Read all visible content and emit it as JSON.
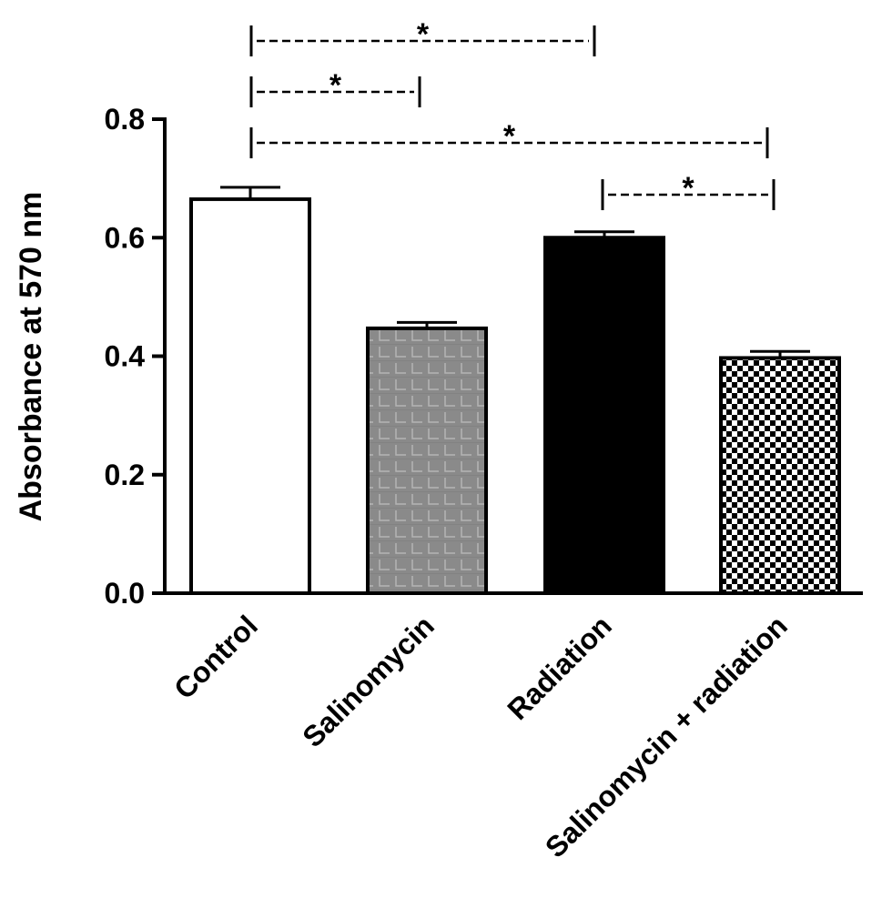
{
  "chart_data": {
    "type": "bar",
    "title": "",
    "xlabel": "",
    "ylabel": "Absorbance at 570 nm",
    "ylim": [
      0,
      0.8
    ],
    "yticks": [
      0.0,
      0.2,
      0.4,
      0.6,
      0.8
    ],
    "ytick_labels": [
      "0.0",
      "0.2",
      "0.4",
      "0.6",
      "0.8"
    ],
    "categories": [
      "Control",
      "Salinomycin",
      "Radiation",
      "Salinomycin + radiation"
    ],
    "values": [
      0.665,
      0.447,
      0.6,
      0.397
    ],
    "errors": [
      0.02,
      0.01,
      0.01,
      0.011
    ],
    "fills": [
      "white",
      "gray-texture",
      "black",
      "checkerboard"
    ],
    "significance": [
      {
        "from": 0,
        "to": 2,
        "label": "*"
      },
      {
        "from": 0,
        "to": 1,
        "label": "*"
      },
      {
        "from": 0,
        "to": 3,
        "label": "*"
      },
      {
        "from": 2,
        "to": 3,
        "label": "*"
      }
    ],
    "grid": false,
    "legend": "none"
  },
  "colors": {
    "axis": "#000000",
    "bar_gray": "#8a8a8a",
    "bar_black": "#000000"
  }
}
